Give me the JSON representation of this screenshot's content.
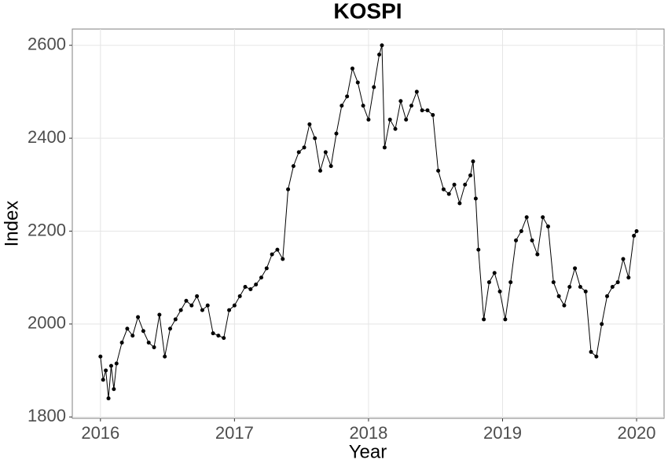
{
  "chart_data": {
    "type": "line",
    "title": "KOSPI",
    "x_label": "Year",
    "y_label": "Index",
    "xlim": [
      2015.79,
      2020.205
    ],
    "xticks": [
      2016,
      2017,
      2018,
      2019,
      2020
    ],
    "ylim": [
      1797,
      2635
    ],
    "yticks": [
      1800,
      2000,
      2200,
      2400,
      2600
    ],
    "grid": true,
    "x": [
      2016.0,
      2016.02,
      2016.04,
      2016.06,
      2016.08,
      2016.1,
      2016.12,
      2016.16,
      2016.2,
      2016.24,
      2016.28,
      2016.32,
      2016.36,
      2016.4,
      2016.44,
      2016.48,
      2016.52,
      2016.56,
      2016.6,
      2016.64,
      2016.68,
      2016.72,
      2016.76,
      2016.8,
      2016.84,
      2016.88,
      2016.92,
      2016.96,
      2017.0,
      2017.04,
      2017.08,
      2017.12,
      2017.16,
      2017.2,
      2017.24,
      2017.28,
      2017.32,
      2017.36,
      2017.4,
      2017.44,
      2017.48,
      2017.52,
      2017.56,
      2017.6,
      2017.64,
      2017.68,
      2017.72,
      2017.76,
      2017.8,
      2017.84,
      2017.88,
      2017.92,
      2017.96,
      2018.0,
      2018.04,
      2018.08,
      2018.1,
      2018.12,
      2018.16,
      2018.2,
      2018.24,
      2018.28,
      2018.32,
      2018.36,
      2018.4,
      2018.44,
      2018.48,
      2018.52,
      2018.56,
      2018.6,
      2018.64,
      2018.68,
      2018.72,
      2018.76,
      2018.78,
      2018.8,
      2018.82,
      2018.86,
      2018.9,
      2018.94,
      2018.98,
      2019.02,
      2019.06,
      2019.1,
      2019.14,
      2019.18,
      2019.22,
      2019.26,
      2019.3,
      2019.34,
      2019.38,
      2019.42,
      2019.46,
      2019.5,
      2019.54,
      2019.58,
      2019.62,
      2019.66,
      2019.7,
      2019.74,
      2019.78,
      2019.82,
      2019.86,
      2019.9,
      2019.94,
      2019.98,
      2020.0
    ],
    "series": [
      {
        "name": "KOSPI",
        "color": "#000000",
        "values": [
          1930,
          1880,
          1900,
          1840,
          1910,
          1860,
          1915,
          1960,
          1990,
          1975,
          2015,
          1985,
          1960,
          1950,
          2020,
          1930,
          1990,
          2010,
          2030,
          2050,
          2040,
          2060,
          2030,
          2040,
          1980,
          1975,
          1970,
          2030,
          2040,
          2060,
          2080,
          2075,
          2085,
          2100,
          2120,
          2150,
          2160,
          2140,
          2290,
          2340,
          2370,
          2380,
          2430,
          2400,
          2330,
          2370,
          2340,
          2410,
          2470,
          2490,
          2550,
          2520,
          2470,
          2440,
          2510,
          2580,
          2600,
          2380,
          2440,
          2420,
          2480,
          2440,
          2470,
          2500,
          2460,
          2460,
          2450,
          2330,
          2290,
          2280,
          2300,
          2260,
          2300,
          2320,
          2350,
          2270,
          2160,
          2010,
          2090,
          2110,
          2070,
          2010,
          2090,
          2180,
          2200,
          2230,
          2180,
          2150,
          2230,
          2210,
          2090,
          2060,
          2040,
          2080,
          2120,
          2080,
          2070,
          1940,
          1930,
          2000,
          2060,
          2080,
          2090,
          2140,
          2100,
          2190,
          2200
        ]
      }
    ]
  }
}
